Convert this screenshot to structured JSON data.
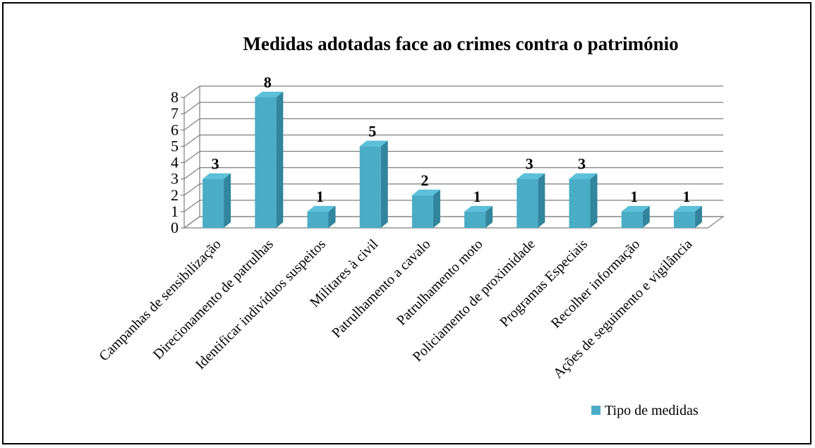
{
  "chart_data": {
    "type": "bar",
    "title": "Medidas adotadas face ao crimes contra o património",
    "categories": [
      "Campanhas de sensibilização",
      "Direcionamento de patrulhas",
      "Identificar indivíduos suspeitos",
      "Militares à civil",
      "Patrulhamento a cavalo",
      "Patrulhamento moto",
      "Policiamento de proximidade",
      "Programas Especiais",
      "Recolher informação",
      "Ações de seguimento e vigilância"
    ],
    "series": [
      {
        "name": "Tipo de medidas",
        "values": [
          3,
          8,
          1,
          5,
          2,
          1,
          3,
          3,
          1,
          1
        ],
        "color": "#4bacc6"
      }
    ],
    "ylim": [
      0,
      8
    ],
    "yticks": [
      "0",
      "1",
      "2",
      "3",
      "4",
      "5",
      "6",
      "7",
      "8"
    ],
    "grid": true,
    "legend": "bottom-right",
    "style": "3d-column"
  }
}
